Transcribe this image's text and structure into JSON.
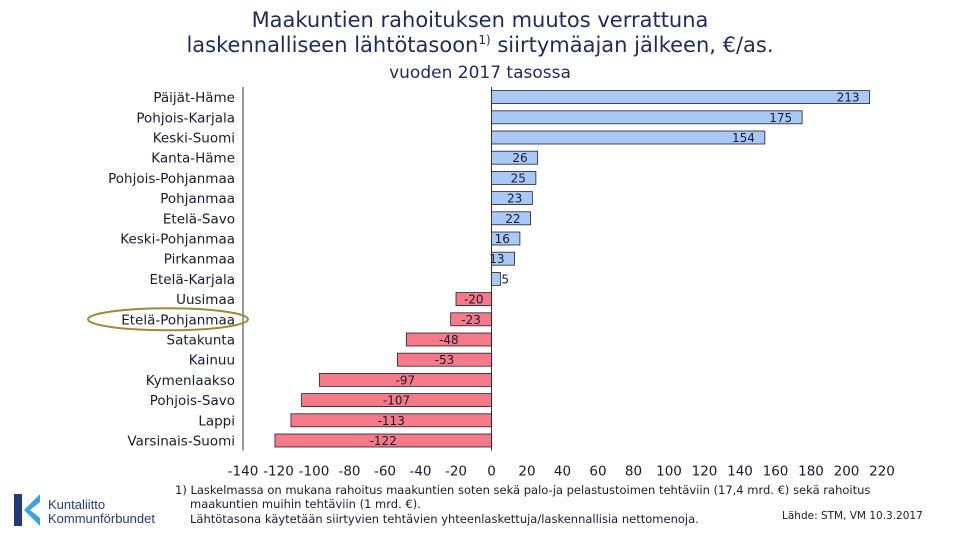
{
  "title": {
    "line1": "Maakuntien rahoituksen muutos verrattuna",
    "line2_pre": "laskennalliseen lähtötasoon",
    "line2_sup": "1)",
    "line2_post": " siirtymäajan jälkeen, €/as.",
    "line3": "vuoden 2017 tasossa"
  },
  "chart_data": {
    "type": "bar",
    "orientation": "horizontal",
    "categories": [
      "Päijät-Häme",
      "Pohjois-Karjala",
      "Keski-Suomi",
      "Kanta-Häme",
      "Pohjois-Pohjanmaa",
      "Pohjanmaa",
      "Etelä-Savo",
      "Keski-Pohjanmaa",
      "Pirkanmaa",
      "Etelä-Karjala",
      "Uusimaa",
      "Etelä-Pohjanmaa",
      "Satakunta",
      "Kainuu",
      "Kymenlaakso",
      "Pohjois-Savo",
      "Lappi",
      "Varsinais-Suomi"
    ],
    "values": [
      213,
      175,
      154,
      26,
      25,
      23,
      22,
      16,
      13,
      5,
      -20,
      -23,
      -48,
      -53,
      -97,
      -107,
      -113,
      -122
    ],
    "xlim": [
      -140,
      220
    ],
    "xticks": [
      -140,
      -120,
      -100,
      -80,
      -60,
      -40,
      -20,
      0,
      20,
      40,
      60,
      80,
      100,
      120,
      140,
      160,
      180,
      200,
      220
    ],
    "highlighted_category": "Etelä-Pohjanmaa",
    "colors": {
      "positive": "#a9c8f5",
      "negative": "#f47a8a",
      "highlight_ring": "#9c8a3a"
    }
  },
  "footnotes": {
    "line1": "1) Laskelmassa on mukana rahoitus maakuntien soten sekä palo-ja pelastustoimen tehtäviin (17,4 mrd. €) sekä rahoitus",
    "line2": "maakuntien muihin tehtäviin (1 mrd. €).",
    "line3": "Lähtötasona käytetään siirtyvien tehtävien yhteenlaskettuja/laskennallisia nettomenoja."
  },
  "source": "Lähde: STM, VM 10.3.2017",
  "logo": {
    "line1": "Kuntaliitto",
    "line2": "Kommunförbundet"
  }
}
